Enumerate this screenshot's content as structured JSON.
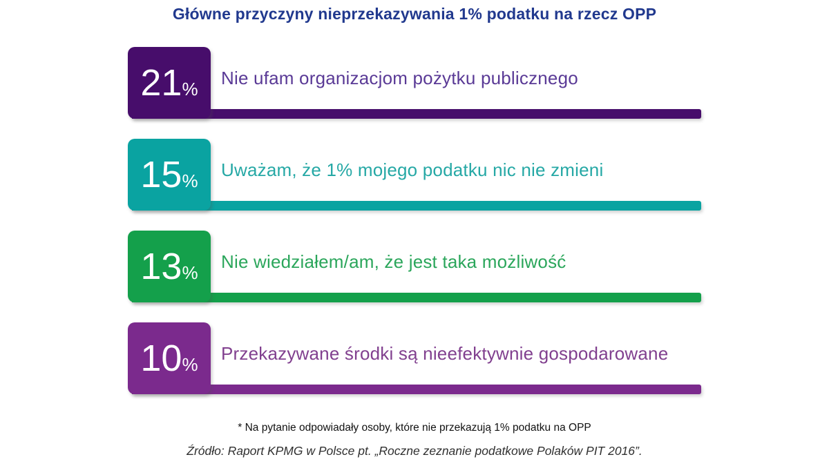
{
  "title": "Główne przyczyny nieprzekazywania 1% podatku na rzecz OPP",
  "rows": [
    {
      "value": "21",
      "unit": "%",
      "label": "Nie ufam organizacjom pożytku publicznego",
      "color": "#470D6B",
      "label_color": "#5A3A96"
    },
    {
      "value": "15",
      "unit": "%",
      "label": "Uważam, że 1% mojego podatku nic nie zmieni",
      "color": "#0AA3A1",
      "label_color": "#25A8A5"
    },
    {
      "value": "13",
      "unit": "%",
      "label": "Nie wiedziałem/am, że jest taka możliwość",
      "color": "#14A04B",
      "label_color": "#2BA65B"
    },
    {
      "value": "10",
      "unit": "%",
      "label": "Przekazywane środki są nieefektywnie gospodarowane",
      "color": "#7B2A8D",
      "label_color": "#81408F"
    }
  ],
  "footnote": "* Na pytanie odpowiadały osoby, które nie przekazują 1% podatku na OPP",
  "source": "Źródło: Raport KPMG w Polsce pt. „Roczne zeznanie podatkowe Polaków PIT 2016”.",
  "colors": {
    "title": "#21398E",
    "background": "#FFFFFF"
  },
  "chart_data": {
    "type": "bar",
    "orientation": "horizontal",
    "title": "Główne przyczyny nieprzekazywania 1% podatku na rzecz OPP",
    "categories": [
      "Nie ufam organizacjom pożytku publicznego",
      "Uważam, że 1% mojego podatku nic nie zmieni",
      "Nie wiedziałem/am, że jest taka możliwość",
      "Przekazywane środki są nieefektywnie gospodarowane"
    ],
    "values": [
      21,
      15,
      13,
      10
    ],
    "unit": "%",
    "bar_colors": [
      "#470D6B",
      "#0AA3A1",
      "#14A04B",
      "#7B2A8D"
    ],
    "bar_length_encodes_value": false,
    "legend": "none",
    "grid": false,
    "annotations": [
      "* Na pytanie odpowiadały osoby, które nie przekazują 1% podatku na OPP",
      "Źródło: Raport KPMG w Polsce pt. „Roczne zeznanie podatkowe Polaków PIT 2016”."
    ]
  }
}
